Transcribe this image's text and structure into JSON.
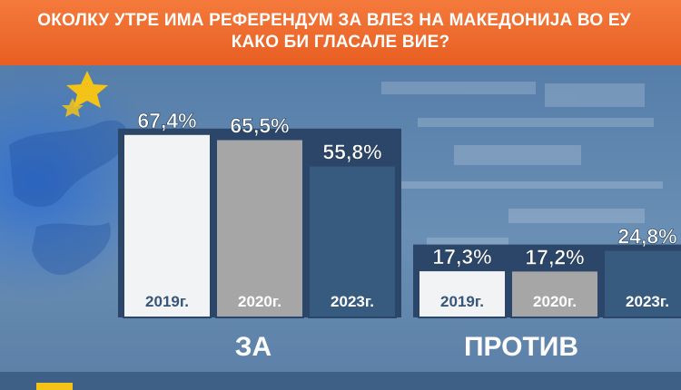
{
  "banner": {
    "line1": "ОКОЛКУ УТРЕ ИМА РЕФЕРЕНДУМ ЗА ВЛЕЗ НА МАКЕДОНИЈА ВО ЕУ",
    "line2": "КАКО БИ ГЛАСАЛЕ ВИЕ?"
  },
  "colors": {
    "banner": "#ee6a2c",
    "background": "#5b80a8",
    "bar_2019": "#f1f3f5",
    "bar_2020": "#a6a6a6",
    "bar_2023": "#375a7f",
    "value_text": "#ffffff",
    "group_label": "#ffffff"
  },
  "chart_data": {
    "type": "bar",
    "title": "",
    "xlabel": "",
    "ylabel": "",
    "ylim": [
      0,
      70
    ],
    "grid": false,
    "legend": "none",
    "value_suffix": "%",
    "decimal_separator": ",",
    "series_names": [
      "2019г.",
      "2020г.",
      "2023г."
    ],
    "categories": [
      "ЗА",
      "ПРОТИВ"
    ],
    "groups": [
      {
        "label": "ЗА",
        "bars": [
          {
            "year": "2019г.",
            "value": 67.4,
            "label": "67,4%"
          },
          {
            "year": "2020г.",
            "value": 65.5,
            "label": "65,5%"
          },
          {
            "year": "2023г.",
            "value": 55.8,
            "label": "55,8%"
          }
        ]
      },
      {
        "label": "ПРОТИВ",
        "bars": [
          {
            "year": "2019г.",
            "value": 17.3,
            "label": "17,3%"
          },
          {
            "year": "2020г.",
            "value": 17.2,
            "label": "17,2%"
          },
          {
            "year": "2023г.",
            "value": 24.8,
            "label": "24,8%"
          }
        ]
      }
    ]
  }
}
